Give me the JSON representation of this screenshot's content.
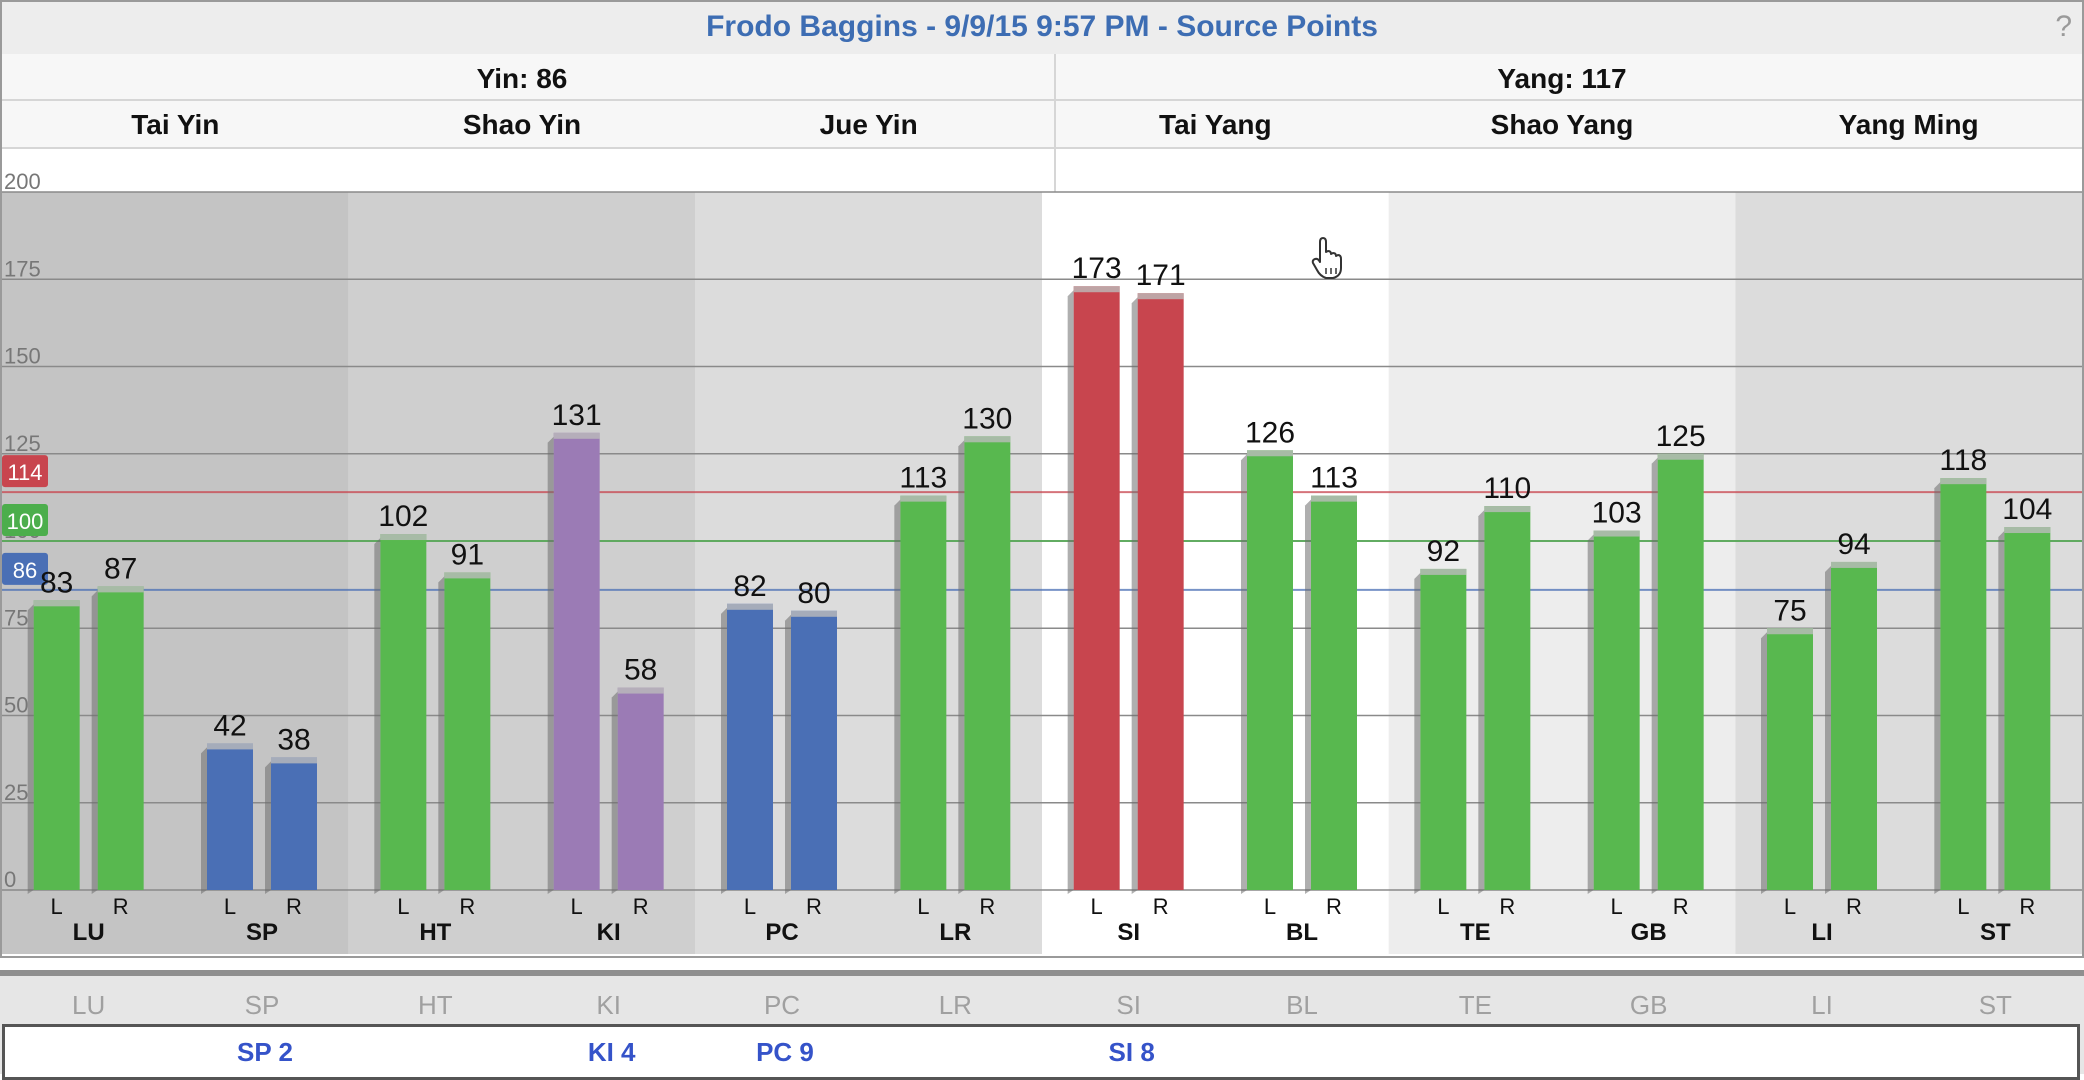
{
  "title": "Frodo Baggins - 9/9/15 9:57 PM - Source Points",
  "help_label": "?",
  "groups": [
    {
      "label": "Yin: 86"
    },
    {
      "label": "Yang: 117"
    }
  ],
  "sections": [
    "Tai Yin",
    "Shao Yin",
    "Jue Yin",
    "Tai Yang",
    "Shao Yang",
    "Yang Ming"
  ],
  "reference_lines": [
    {
      "label": "114",
      "value": 114,
      "color": "#c8454e"
    },
    {
      "label": "100",
      "value": 100,
      "color": "#4cae4c"
    },
    {
      "label": "86",
      "value": 86,
      "color": "#4a6fb5"
    }
  ],
  "colors": {
    "green": "#58b84f",
    "blue": "#4a6fb5",
    "purple": "#9b7bb5",
    "red": "#c8454e"
  },
  "chart_data": {
    "type": "bar",
    "title": "Frodo Baggins - 9/9/15 9:57 PM - Source Points",
    "ylim": [
      0,
      200
    ],
    "yticks": [
      0,
      25,
      50,
      75,
      100,
      125,
      150,
      175,
      200
    ],
    "grid": true,
    "categories": [
      "LU",
      "SP",
      "HT",
      "KI",
      "PC",
      "LR",
      "SI",
      "BL",
      "TE",
      "GB",
      "LI",
      "ST"
    ],
    "series": [
      {
        "name": "L",
        "values": [
          83,
          42,
          102,
          131,
          82,
          113,
          173,
          126,
          92,
          103,
          75,
          118
        ],
        "colors": [
          "green",
          "blue",
          "green",
          "purple",
          "blue",
          "green",
          "red",
          "green",
          "green",
          "green",
          "green",
          "green"
        ]
      },
      {
        "name": "R",
        "values": [
          87,
          38,
          91,
          58,
          80,
          130,
          171,
          113,
          110,
          125,
          94,
          104
        ],
        "colors": [
          "green",
          "blue",
          "green",
          "purple",
          "blue",
          "green",
          "red",
          "green",
          "green",
          "green",
          "green",
          "green"
        ]
      }
    ]
  },
  "footer": {
    "meridians": [
      "LU",
      "SP",
      "HT",
      "KI",
      "PC",
      "LR",
      "SI",
      "BL",
      "TE",
      "GB",
      "LI",
      "ST"
    ],
    "points": [
      {
        "meridian": "SP",
        "label": "SP 2"
      },
      {
        "meridian": "KI",
        "label": "KI 4"
      },
      {
        "meridian": "PC",
        "label": "PC 9"
      },
      {
        "meridian": "SI",
        "label": "SI 8"
      }
    ]
  }
}
